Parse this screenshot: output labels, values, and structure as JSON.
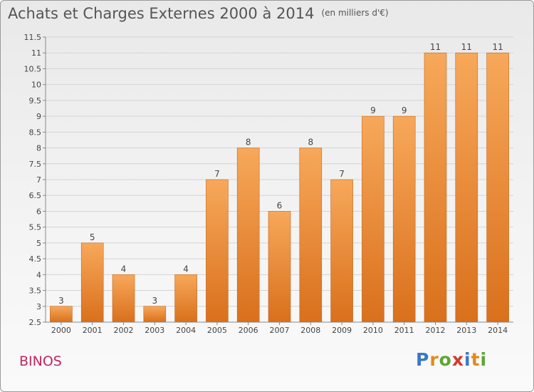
{
  "title": "Achats et Charges Externes 2000 à 2014",
  "unit": "(en milliers d'€)",
  "commune": "BINOS",
  "logo": {
    "text": "Proxiti",
    "letter_colors": [
      "#3a78c2",
      "#e38a1c",
      "#5aa832",
      "#d33a2a",
      "#3a78c2",
      "#e38a1c",
      "#5aa832"
    ]
  },
  "colors": {
    "bar_light": "#f7a85a",
    "bar_dark": "#d9701c",
    "bar_edge": "#c9661a",
    "commune": "#c0285f"
  },
  "chart_data": {
    "type": "bar",
    "categories": [
      "2000",
      "2001",
      "2002",
      "2003",
      "2004",
      "2005",
      "2006",
      "2007",
      "2008",
      "2009",
      "2010",
      "2011",
      "2012",
      "2013",
      "2014"
    ],
    "values": [
      3,
      5,
      4,
      3,
      4,
      7,
      8,
      6,
      8,
      7,
      9,
      9,
      11,
      11,
      11
    ],
    "ylim": [
      2.5,
      11.5
    ],
    "yticks": [
      "2.5",
      "3",
      "3.5",
      "4",
      "4.5",
      "5",
      "5.5",
      "6",
      "6.5",
      "7",
      "7.5",
      "8",
      "8.5",
      "9",
      "9.5",
      "10",
      "10.5",
      "11",
      "11.5"
    ],
    "grid": true
  }
}
